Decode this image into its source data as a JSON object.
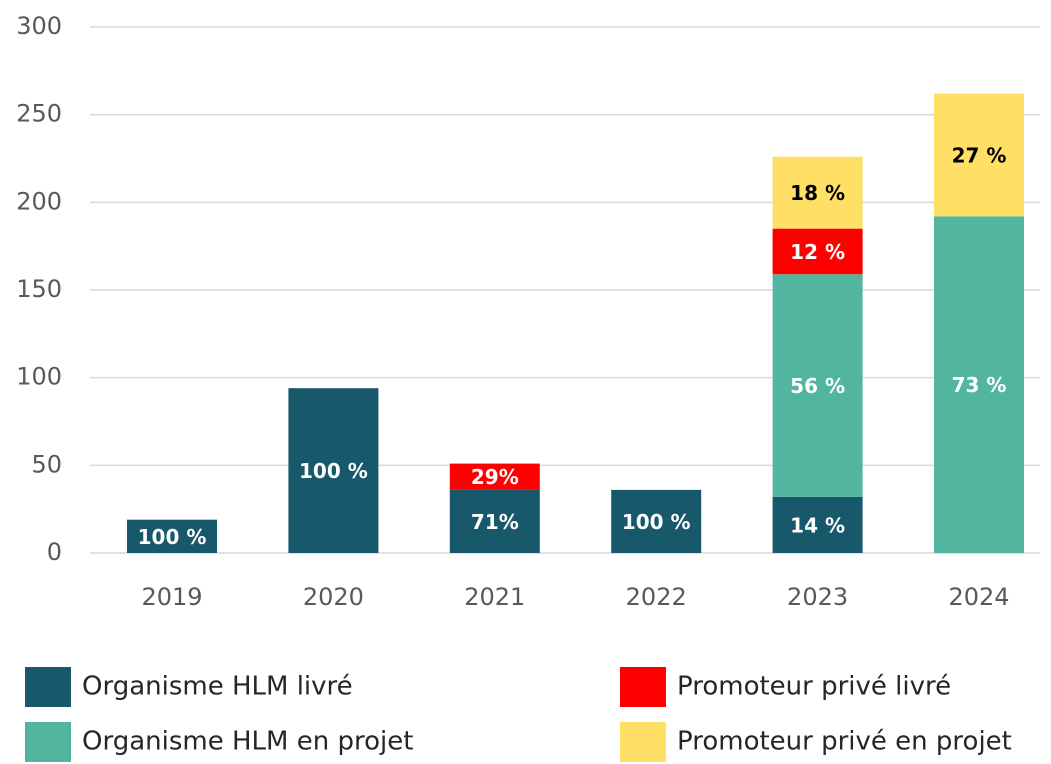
{
  "chart_data": {
    "type": "stacked_bar",
    "categories": [
      "2019",
      "2020",
      "2021",
      "2022",
      "2023",
      "2024"
    ],
    "series": [
      {
        "name": "Organisme HLM livré",
        "color": "#17596b",
        "values": [
          19,
          94,
          36,
          36,
          32,
          null
        ],
        "value_labels": [
          "100 %",
          "100 %",
          "71%",
          "100 %",
          "14 %",
          null
        ],
        "label_color": "#ffffff"
      },
      {
        "name": "Organisme HLM en projet",
        "color": "#52b5a0",
        "values": [
          null,
          null,
          null,
          null,
          127,
          192
        ],
        "value_labels": [
          null,
          null,
          null,
          null,
          "56 %",
          "73 %"
        ],
        "label_color": "#ffffff"
      },
      {
        "name": "Promoteur privé livré",
        "color": "#ff0000",
        "values": [
          null,
          null,
          15,
          null,
          26,
          null
        ],
        "value_labels": [
          null,
          null,
          "29%",
          null,
          "12 %",
          null
        ],
        "label_color": "#ffffff"
      },
      {
        "name": "Promoteur privé en projet",
        "color": "#ffdf66",
        "values": [
          null,
          null,
          null,
          null,
          41,
          70
        ],
        "value_labels": [
          null,
          null,
          null,
          null,
          "18 %",
          "27 %"
        ],
        "label_color": "#000000"
      }
    ],
    "ylim": [
      0,
      300
    ],
    "yticks": [
      0,
      50,
      100,
      150,
      200,
      250,
      300
    ],
    "grid": true
  }
}
